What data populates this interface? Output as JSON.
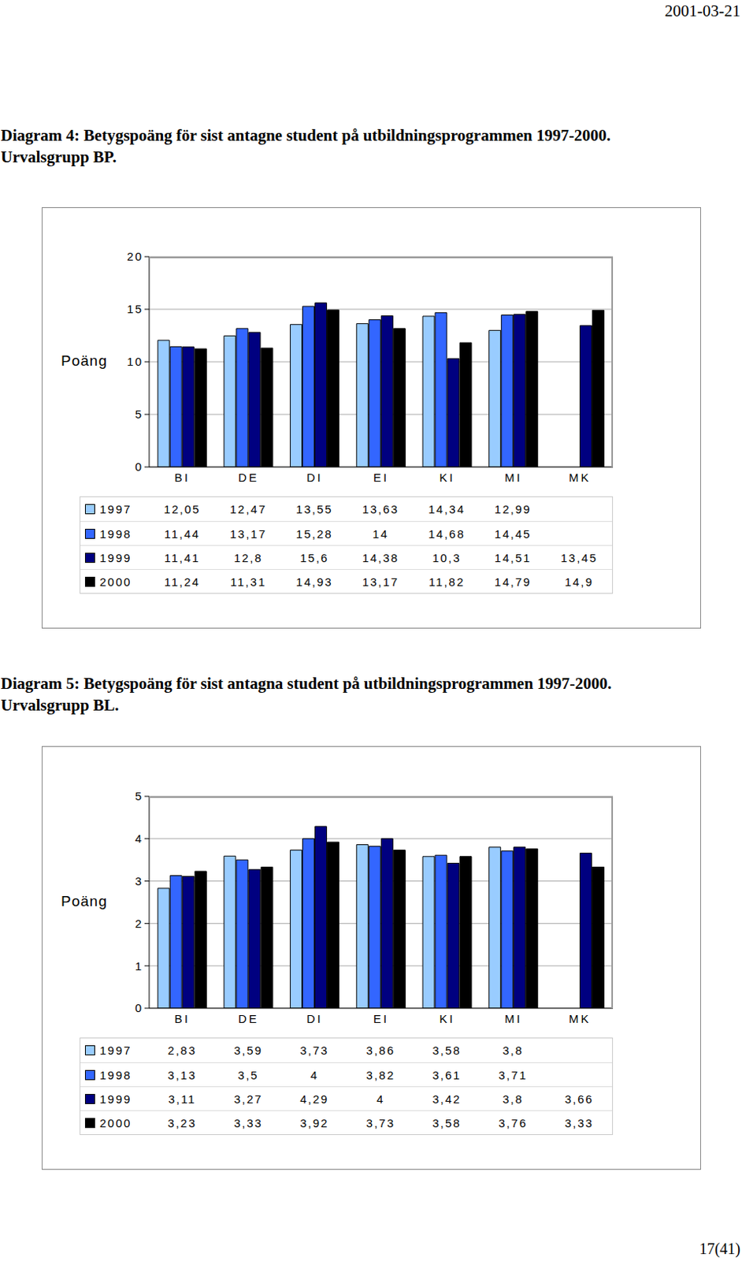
{
  "page": {
    "date": "2001-03-21",
    "page_number": "17(41)"
  },
  "chart_data": [
    {
      "type": "bar",
      "title": "Diagram 4: Betygspoäng för sist antagne student på utbildningsprogrammen 1997-2000. Urvalsgrupp BP.",
      "y_label": "Poäng",
      "categories": [
        "BI",
        "DE",
        "DI",
        "EI",
        "KI",
        "MI",
        "MK"
      ],
      "series": [
        {
          "name": "1997",
          "color": "#99ccff",
          "values": [
            12.05,
            12.47,
            13.55,
            13.63,
            14.34,
            12.99,
            null
          ],
          "value_labels": [
            "12,05",
            "12,47",
            "13,55",
            "13,63",
            "14,34",
            "12,99",
            null
          ]
        },
        {
          "name": "1998",
          "color": "#3366ff",
          "values": [
            11.44,
            13.17,
            15.28,
            14,
            14.68,
            14.45,
            null
          ],
          "value_labels": [
            "11,44",
            "13,17",
            "15,28",
            "14",
            "14,68",
            "14,45",
            null
          ]
        },
        {
          "name": "1999",
          "color": "#000080",
          "values": [
            11.41,
            12.8,
            15.6,
            14.38,
            10.3,
            14.51,
            13.45
          ],
          "value_labels": [
            "11,41",
            "12,8",
            "15,6",
            "14,38",
            "10,3",
            "14,51",
            "13,45"
          ]
        },
        {
          "name": "2000",
          "color": "#000000",
          "values": [
            11.24,
            11.31,
            14.93,
            13.17,
            11.82,
            14.79,
            14.9
          ],
          "value_labels": [
            "11,24",
            "11,31",
            "14,93",
            "13,17",
            "11,82",
            "14,79",
            "14,9"
          ]
        }
      ],
      "ylim": [
        0,
        20
      ],
      "yticks": [
        0,
        5,
        10,
        15,
        20
      ],
      "grid": true
    },
    {
      "type": "bar",
      "title": "Diagram 5: Betygspoäng för sist antagna student på utbildningsprogrammen 1997-2000. Urvalsgrupp BL.",
      "y_label": "Poäng",
      "categories": [
        "BI",
        "DE",
        "DI",
        "EI",
        "KI",
        "MI",
        "MK"
      ],
      "series": [
        {
          "name": "1997",
          "color": "#99ccff",
          "values": [
            2.83,
            3.59,
            3.73,
            3.86,
            3.58,
            3.8,
            null
          ],
          "value_labels": [
            "2,83",
            "3,59",
            "3,73",
            "3,86",
            "3,58",
            "3,8",
            null
          ]
        },
        {
          "name": "1998",
          "color": "#3366ff",
          "values": [
            3.13,
            3.5,
            4,
            3.82,
            3.61,
            3.71,
            null
          ],
          "value_labels": [
            "3,13",
            "3,5",
            "4",
            "3,82",
            "3,61",
            "3,71",
            null
          ]
        },
        {
          "name": "1999",
          "color": "#000080",
          "values": [
            3.11,
            3.27,
            4.29,
            4,
            3.42,
            3.8,
            3.66
          ],
          "value_labels": [
            "3,11",
            "3,27",
            "4,29",
            "4",
            "3,42",
            "3,8",
            "3,66"
          ]
        },
        {
          "name": "2000",
          "color": "#000000",
          "values": [
            3.23,
            3.33,
            3.92,
            3.73,
            3.58,
            3.76,
            3.33
          ],
          "value_labels": [
            "3,23",
            "3,33",
            "3,92",
            "3,73",
            "3,58",
            "3,76",
            "3,33"
          ]
        }
      ],
      "ylim": [
        0,
        5
      ],
      "yticks": [
        0,
        1,
        2,
        3,
        4,
        5
      ],
      "grid": true
    }
  ]
}
